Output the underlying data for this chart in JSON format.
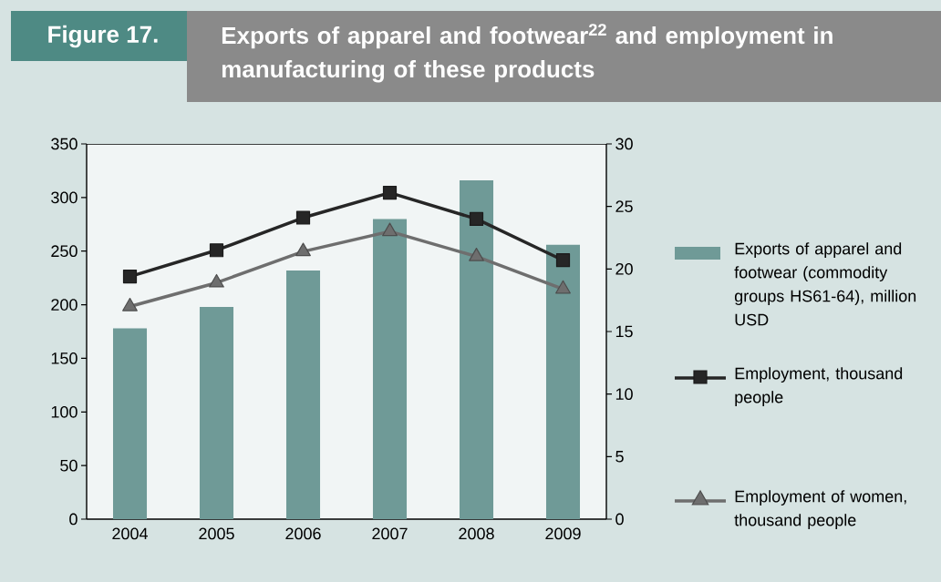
{
  "chart_data": {
    "type": "bar",
    "title": "Exports of apparel and footwear$^{22}$ and employment in manufacturing of these products",
    "annotations": [
      "Figure 17."
    ],
    "categories": [
      "2004",
      "2005",
      "2006",
      "2007",
      "2008",
      "2009"
    ],
    "series": [
      {
        "name": "Exports of apparel and footwear (commodity groups HS61-64), million USD",
        "color": "#6f9a97",
        "values": [
          178,
          198,
          232,
          280,
          316,
          256
        ]
      },
      {
        "name": "Employment, thousand people",
        "type": "line",
        "axis": "y2",
        "marker": "square",
        "color": "#262626",
        "values": [
          19.4,
          21.5,
          24.1,
          26.1,
          24.0,
          20.7
        ]
      },
      {
        "name": "Employment of women, thousand people",
        "type": "line",
        "axis": "y2",
        "marker": "triangle",
        "color": "#6e6e6e",
        "values": [
          17.0,
          18.9,
          21.4,
          23.0,
          21.0,
          18.4
        ]
      }
    ],
    "ylim": [
      0,
      350
    ],
    "yticks": [
      0,
      50,
      100,
      150,
      200,
      250,
      300,
      350
    ],
    "y2lim": [
      0,
      30
    ],
    "y2ticks": [
      0,
      5,
      10,
      15,
      20,
      25,
      30
    ],
    "grid": false,
    "legend": "right"
  }
}
